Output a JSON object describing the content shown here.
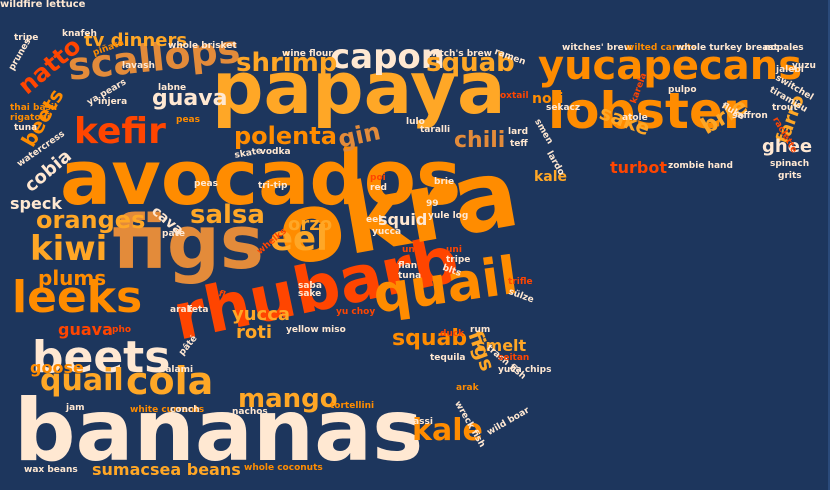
{
  "colors": {
    "background": "#1d365d",
    "orange": "#ff8c00",
    "gold": "#ffa726",
    "red": "#ff4500",
    "tan": "#e38b3a",
    "cream": "#ffe8d2",
    "white": "#ffffff"
  },
  "words": [
    {
      "text": "bananas",
      "color": "#ffe8d2"
    },
    {
      "text": "rhubarb",
      "color": "#ff4500"
    },
    {
      "text": "okra",
      "color": "#ff8c00"
    },
    {
      "text": "avocados",
      "color": "#ff8c00"
    },
    {
      "text": "papaya",
      "color": "#ffa726"
    },
    {
      "text": "figs",
      "color": "#e38b3a"
    },
    {
      "text": "lobster",
      "color": "#ff8c00"
    },
    {
      "text": "yucapecans",
      "color": "#ff8c00"
    },
    {
      "text": "leeks",
      "color": "#ff8c00"
    },
    {
      "text": "quail",
      "color": "#ff8c00"
    },
    {
      "text": "beets",
      "color": "#ffe8d2"
    },
    {
      "text": "cola",
      "color": "#ffa726"
    },
    {
      "text": "kefir",
      "color": "#ff4500"
    },
    {
      "text": "scallops",
      "color": "#e38b3a"
    },
    {
      "text": "capon",
      "color": "#ffe8d2"
    },
    {
      "text": "kiwi",
      "color": "#ffa726"
    },
    {
      "text": "eel",
      "color": "#ffa726"
    },
    {
      "text": "kale",
      "color": "#ff8c00"
    },
    {
      "text": "squab",
      "color": "#ffa726"
    },
    {
      "text": "shrimp",
      "color": "#ffa726"
    },
    {
      "text": "squab",
      "color": "#ff8c00"
    },
    {
      "text": "quail",
      "color": "#ffa726"
    },
    {
      "text": "mango",
      "color": "#ffa726"
    },
    {
      "text": "salsa",
      "color": "#ffa726"
    },
    {
      "text": "oranges",
      "color": "#ffa726"
    },
    {
      "text": "polenta",
      "color": "#ff8c00"
    },
    {
      "text": "gin",
      "color": "#e38b3a"
    },
    {
      "text": "chili",
      "color": "#e38b3a"
    },
    {
      "text": "guava",
      "color": "#ffe8d2"
    },
    {
      "text": "natto",
      "color": "#ff4500"
    },
    {
      "text": "beets",
      "color": "#ff8c00"
    },
    {
      "text": "cobia",
      "color": "#ffe8d2"
    },
    {
      "text": "tv dinners",
      "color": "#ffa726"
    },
    {
      "text": "sake",
      "color": "#ffa726"
    },
    {
      "text": "brie",
      "color": "#ffa726"
    },
    {
      "text": "farro",
      "color": "#ffa726"
    },
    {
      "text": "ghee",
      "color": "#ffe8d2"
    },
    {
      "text": "nori",
      "color": "#ff8c00"
    },
    {
      "text": "turbot",
      "color": "#ff4500"
    },
    {
      "text": "kale",
      "color": "#ffa726"
    },
    {
      "text": "figs",
      "color": "#ffa726"
    },
    {
      "text": "smelt",
      "color": "#ffa726"
    },
    {
      "text": "plums",
      "color": "#ff8c00"
    },
    {
      "text": "orzo",
      "color": "#ffa726"
    },
    {
      "text": "roti",
      "color": "#ffa726"
    },
    {
      "text": "yucca",
      "color": "#ffa726"
    },
    {
      "text": "goose",
      "color": "#ff8c00"
    },
    {
      "text": "guava",
      "color": "#ff4500"
    },
    {
      "text": "speck",
      "color": "#ffe8d2"
    },
    {
      "text": "squid",
      "color": "#ffe8d2"
    },
    {
      "text": "sumac",
      "color": "#ffa726"
    },
    {
      "text": "sea beans",
      "color": "#ffa726"
    },
    {
      "text": "cava",
      "color": "#ffe8d2"
    },
    {
      "text": "whole brisket",
      "color": "#ffe8d2"
    },
    {
      "text": "wine flour",
      "color": "#ffe8d2"
    },
    {
      "text": "witch's brew",
      "color": "#ffe8d2"
    },
    {
      "text": "witches' brew",
      "color": "#ffe8d2"
    },
    {
      "text": "wilted carrots",
      "color": "#ff8c00"
    },
    {
      "text": "whole turkey breast",
      "color": "#ffe8d2"
    },
    {
      "text": "nopales",
      "color": "#ffe8d2"
    },
    {
      "text": "knafeh",
      "color": "#ffe8d2"
    },
    {
      "text": "tripe",
      "color": "#ffe8d2"
    },
    {
      "text": "prunes",
      "color": "#ffe8d2"
    },
    {
      "text": "piñata",
      "color": "#ff8c00"
    },
    {
      "text": "lavash",
      "color": "#ffe8d2"
    },
    {
      "text": "labne",
      "color": "#ffe8d2"
    },
    {
      "text": "thai basil",
      "color": "#ff8c00"
    },
    {
      "text": "rigatoni",
      "color": "#ff8c00"
    },
    {
      "text": "ya pears",
      "color": "#ffe8d2"
    },
    {
      "text": "injera",
      "color": "#ffe8d2"
    },
    {
      "text": "peas",
      "color": "#ff8c00"
    },
    {
      "text": "tuna",
      "color": "#ffe8d2"
    },
    {
      "text": "watercress",
      "color": "#ffe8d2"
    },
    {
      "text": "skate",
      "color": "#ffe8d2"
    },
    {
      "text": "vodka",
      "color": "#ffe8d2"
    },
    {
      "text": "tri-tip",
      "color": "#ffe8d2"
    },
    {
      "text": "peas",
      "color": "#ffe8d2"
    },
    {
      "text": "poi",
      "color": "#ff4500"
    },
    {
      "text": "red",
      "color": "#ffe8d2"
    },
    {
      "text": "brie",
      "color": "#ffe8d2"
    },
    {
      "text": "ramen",
      "color": "#ffe8d2"
    },
    {
      "text": "oxtail",
      "color": "#ff4500"
    },
    {
      "text": "lulo",
      "color": "#ffe8d2"
    },
    {
      "text": "taralli",
      "color": "#ffe8d2"
    },
    {
      "text": "lard",
      "color": "#ffe8d2"
    },
    {
      "text": "teff",
      "color": "#ffe8d2"
    },
    {
      "text": "sekacz",
      "color": "#ffe8d2"
    },
    {
      "text": "smen",
      "color": "#ffe8d2"
    },
    {
      "text": "karela",
      "color": "#ff4500"
    },
    {
      "text": "pulpo",
      "color": "#ffe8d2"
    },
    {
      "text": "atole",
      "color": "#ffe8d2"
    },
    {
      "text": "fluke",
      "color": "#ffe8d2"
    },
    {
      "text": "saffron",
      "color": "#ffe8d2"
    },
    {
      "text": "jalebi",
      "color": "#ffe8d2"
    },
    {
      "text": "yuzu",
      "color": "#ffe8d2"
    },
    {
      "text": "switchel",
      "color": "#ffe8d2"
    },
    {
      "text": "tiramisu",
      "color": "#ffe8d2"
    },
    {
      "text": "trout",
      "color": "#ffe8d2"
    },
    {
      "text": "raclette",
      "color": "#ff4500"
    },
    {
      "text": "lardo",
      "color": "#ffe8d2"
    },
    {
      "text": "zombie hand",
      "color": "#ffe8d2"
    },
    {
      "text": "spinach",
      "color": "#ffe8d2"
    },
    {
      "text": "grits",
      "color": "#ffe8d2"
    },
    {
      "text": "eel",
      "color": "#ffe8d2"
    },
    {
      "text": "yucca",
      "color": "#ffe8d2"
    },
    {
      "text": "yule log",
      "color": "#ffe8d2"
    },
    {
      "text": "99",
      "color": "#ffe8d2"
    },
    {
      "text": "pate",
      "color": "#ffe8d2"
    },
    {
      "text": "whelks",
      "color": "#ff4500"
    },
    {
      "text": "saba",
      "color": "#ffe8d2"
    },
    {
      "text": "sake",
      "color": "#ffe8d2"
    },
    {
      "text": "flan",
      "color": "#ff4500"
    },
    {
      "text": "feta",
      "color": "#ffe8d2"
    },
    {
      "text": "arak",
      "color": "#ffe8d2"
    },
    {
      "text": "uni",
      "color": "#ff4500"
    },
    {
      "text": "flan",
      "color": "#ffe8d2"
    },
    {
      "text": "tuna",
      "color": "#ffe8d2"
    },
    {
      "text": "uni",
      "color": "#ff4500"
    },
    {
      "text": "tripe",
      "color": "#ffe8d2"
    },
    {
      "text": "blts",
      "color": "#ffe8d2"
    },
    {
      "text": "trifle",
      "color": "#ff4500"
    },
    {
      "text": "sülze",
      "color": "#ffe8d2"
    },
    {
      "text": "pho",
      "color": "#ff4500"
    },
    {
      "text": "yellow miso",
      "color": "#ffe8d2"
    },
    {
      "text": "yu choy",
      "color": "#ff4500"
    },
    {
      "text": "pâté",
      "color": "#ffe8d2"
    },
    {
      "text": "duck",
      "color": "#ff4500"
    },
    {
      "text": "rum",
      "color": "#ffe8d2"
    },
    {
      "text": "trash fish",
      "color": "#ffe8d2"
    },
    {
      "text": "seitan",
      "color": "#ff4500"
    },
    {
      "text": "tequila",
      "color": "#ffe8d2"
    },
    {
      "text": "yuca chips",
      "color": "#ffe8d2"
    },
    {
      "text": "salami",
      "color": "#ffe8d2"
    },
    {
      "text": "arak",
      "color": "#ff8c00"
    },
    {
      "text": "jam",
      "color": "#ffe8d2"
    },
    {
      "text": "white currants",
      "color": "#ff8c00"
    },
    {
      "text": "conch",
      "color": "#ffe8d2"
    },
    {
      "text": "nachos",
      "color": "#ffe8d2"
    },
    {
      "text": "tortellini",
      "color": "#ff8c00"
    },
    {
      "text": "wreck fish",
      "color": "#ffe8d2"
    },
    {
      "text": "lassi",
      "color": "#ffe8d2"
    },
    {
      "text": "wild boar",
      "color": "#ffe8d2"
    },
    {
      "text": "wax beans",
      "color": "#ffe8d2"
    },
    {
      "text": "whole coconuts",
      "color": "#ff8c00"
    },
    {
      "text": "wildfire lettuce",
      "color": "#ffe8d2"
    }
  ]
}
